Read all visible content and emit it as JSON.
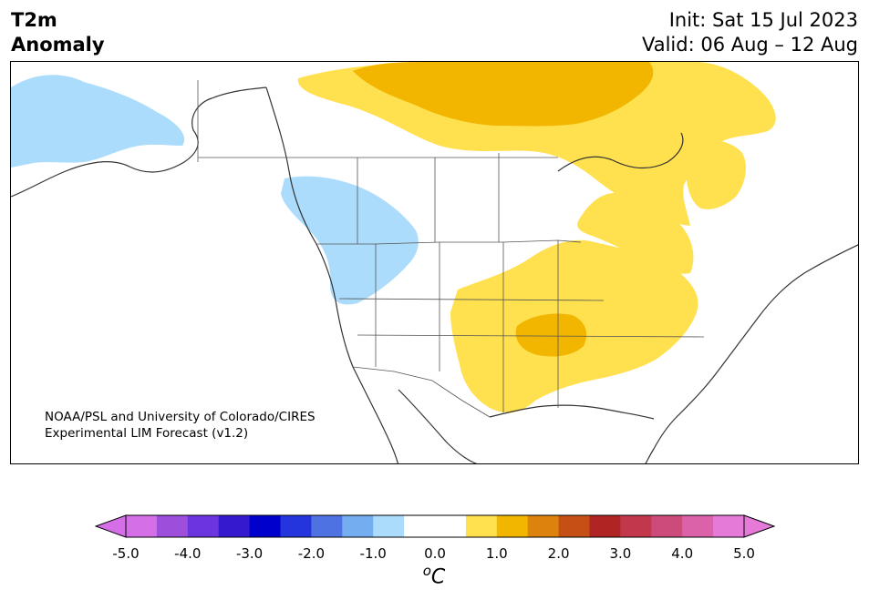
{
  "title": {
    "line1": "T2m",
    "line2": "Anomaly"
  },
  "dates": {
    "init": "Init: Sat 15 Jul 2023",
    "valid": "Valid: 06 Aug – 12 Aug"
  },
  "credit": {
    "line1": "NOAA/PSL and University of Colorado/CIRES",
    "line2": "Experimental LIM Forecast (v1.2)"
  },
  "region": "North America",
  "colorbar": {
    "ticks": [
      "-5.0",
      "-4.0",
      "-3.0",
      "-2.0",
      "-1.0",
      "0.0",
      "1.0",
      "2.0",
      "3.0",
      "4.0",
      "5.0"
    ],
    "unit_sup": "o",
    "unit_main": "C",
    "colors": [
      "#d56fe8",
      "#9d4fdc",
      "#6a35de",
      "#3519cf",
      "#0000cc",
      "#2435dd",
      "#4f72e3",
      "#74aef0",
      "#acdcfb",
      "#ffffff",
      "#ffffff",
      "#ffe04f",
      "#f2b601",
      "#dd820c",
      "#c54f14",
      "#b02523",
      "#c2374c",
      "#cd4b7a",
      "#db61a8",
      "#e57ad8"
    ],
    "under_color": "#d56fe8",
    "over_color": "#e57ad8"
  },
  "anomaly_colors": {
    "cool": "#acdcfb",
    "warm1": "#ffe04f",
    "warm2": "#f2b601",
    "warm3": "#dd820c"
  },
  "anomaly_regions": [
    {
      "name": "alaska-cool-anomaly",
      "level": "cool"
    },
    {
      "name": "pacific-northwest-cool-anomaly",
      "level": "cool"
    },
    {
      "name": "canadian-arctic-warm-anomaly",
      "level": "warm1"
    },
    {
      "name": "canadian-arctic-strong-warm-anomaly",
      "level": "warm2"
    },
    {
      "name": "hudson-bay-warm-anomaly",
      "level": "warm1"
    },
    {
      "name": "central-us-warm-anomaly",
      "level": "warm1"
    },
    {
      "name": "southern-plains-strong-warm-anomaly",
      "level": "warm2"
    },
    {
      "name": "great-lakes-warm-anomaly",
      "level": "warm1"
    }
  ]
}
